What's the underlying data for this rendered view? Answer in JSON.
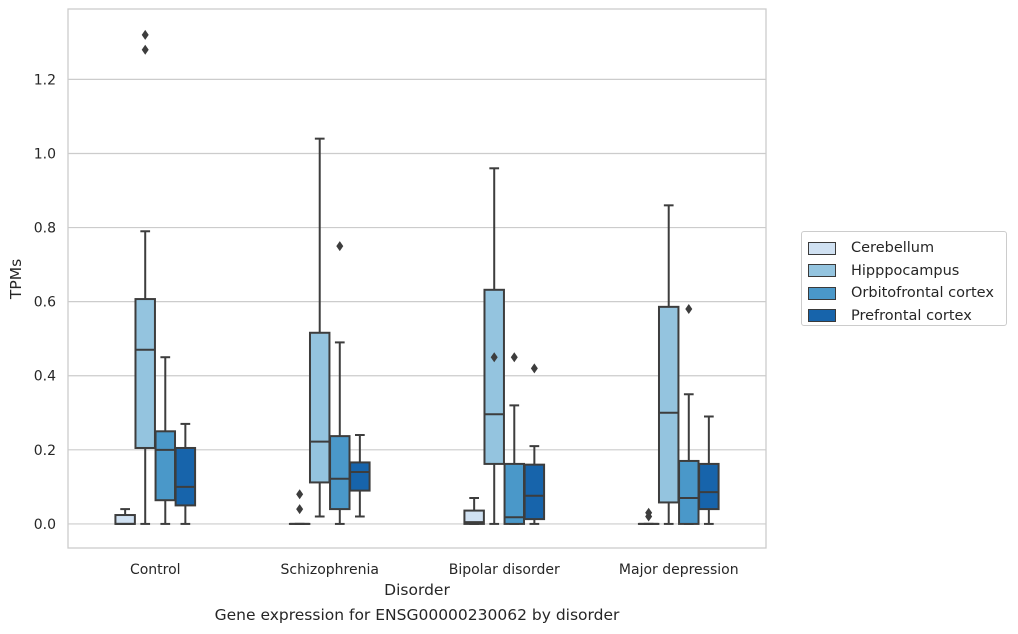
{
  "chart_data": {
    "type": "boxplot",
    "xlabel": "Disorder",
    "ylabel": "TPMs",
    "caption": "Gene expression for ENSG00000230062 by disorder",
    "categories": [
      "Control",
      "Schizophrenia",
      "Bipolar disorder",
      "Major depression"
    ],
    "ylim": [
      -0.065,
      1.39
    ],
    "yticks": [
      0.0,
      0.2,
      0.4,
      0.6,
      0.8,
      1.0,
      1.2
    ],
    "ytick_labels": [
      "0.0",
      "0.2",
      "0.4",
      "0.6",
      "0.8",
      "1.0",
      "1.2"
    ],
    "grid": "horizontal",
    "legend_position": "right",
    "series": [
      {
        "name": "Cerebellum",
        "color": "#d0e1f2",
        "boxes": [
          {
            "whislo": 0.0,
            "q1": 0.0,
            "med": 0.0,
            "q3": 0.024,
            "whishi": 0.04,
            "fliers": []
          },
          {
            "whislo": 0.0,
            "q1": 0.0,
            "med": 0.0,
            "q3": 0.0,
            "whishi": 0.0,
            "fliers": [
              0.04,
              0.08
            ]
          },
          {
            "whislo": 0.0,
            "q1": 0.0,
            "med": 0.005,
            "q3": 0.036,
            "whishi": 0.07,
            "fliers": []
          },
          {
            "whislo": 0.0,
            "q1": 0.0,
            "med": 0.0,
            "q3": 0.0,
            "whishi": 0.0,
            "fliers": [
              0.02,
              0.03
            ]
          }
        ]
      },
      {
        "name": "Hipppocampus",
        "color": "#94c4df",
        "boxes": [
          {
            "whislo": 0.0,
            "q1": 0.205,
            "med": 0.47,
            "q3": 0.607,
            "whishi": 0.79,
            "fliers": [
              1.28,
              1.32
            ]
          },
          {
            "whislo": 0.02,
            "q1": 0.112,
            "med": 0.222,
            "q3": 0.516,
            "whishi": 1.04,
            "fliers": []
          },
          {
            "whislo": 0.0,
            "q1": 0.162,
            "med": 0.296,
            "q3": 0.632,
            "whishi": 0.96,
            "fliers": [
              0.45
            ]
          },
          {
            "whislo": 0.0,
            "q1": 0.058,
            "med": 0.3,
            "q3": 0.586,
            "whishi": 0.86,
            "fliers": []
          }
        ]
      },
      {
        "name": "Orbitofrontal cortex",
        "color": "#4a98c9",
        "boxes": [
          {
            "whislo": 0.0,
            "q1": 0.064,
            "med": 0.2,
            "q3": 0.25,
            "whishi": 0.45,
            "fliers": []
          },
          {
            "whislo": 0.0,
            "q1": 0.04,
            "med": 0.122,
            "q3": 0.237,
            "whishi": 0.49,
            "fliers": [
              0.75
            ]
          },
          {
            "whislo": 0.0,
            "q1": 0.0,
            "med": 0.018,
            "q3": 0.162,
            "whishi": 0.32,
            "fliers": [
              0.45
            ]
          },
          {
            "whislo": 0.0,
            "q1": 0.0,
            "med": 0.07,
            "q3": 0.17,
            "whishi": 0.35,
            "fliers": [
              0.58
            ]
          }
        ]
      },
      {
        "name": "Prefrontal cortex",
        "color": "#1764ab",
        "boxes": [
          {
            "whislo": 0.0,
            "q1": 0.05,
            "med": 0.1,
            "q3": 0.205,
            "whishi": 0.27,
            "fliers": []
          },
          {
            "whislo": 0.02,
            "q1": 0.09,
            "med": 0.14,
            "q3": 0.166,
            "whishi": 0.24,
            "fliers": []
          },
          {
            "whislo": 0.0,
            "q1": 0.013,
            "med": 0.076,
            "q3": 0.16,
            "whishi": 0.21,
            "fliers": [
              0.42
            ]
          },
          {
            "whislo": 0.0,
            "q1": 0.04,
            "med": 0.086,
            "q3": 0.162,
            "whishi": 0.29,
            "fliers": []
          }
        ]
      }
    ]
  }
}
